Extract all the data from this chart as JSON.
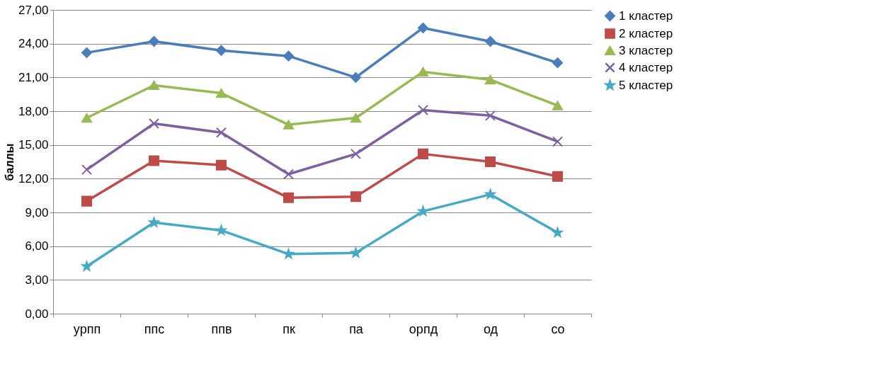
{
  "chart_data": {
    "type": "line",
    "ylabel": "баллы",
    "categories": [
      "урпп",
      "ппс",
      "ппв",
      "пк",
      "па",
      "орпд",
      "од",
      "со"
    ],
    "series": [
      {
        "name": "1 кластер",
        "color": "#4a7ebb",
        "marker": "diamond",
        "values": [
          23.2,
          24.2,
          23.4,
          22.9,
          21.0,
          25.4,
          24.2,
          22.3
        ]
      },
      {
        "name": "2 кластер",
        "color": "#be4b48",
        "marker": "square",
        "values": [
          10.0,
          13.6,
          13.2,
          10.3,
          10.4,
          14.2,
          13.5,
          12.2
        ]
      },
      {
        "name": "3 кластер",
        "color": "#98b954",
        "marker": "triangle",
        "values": [
          17.4,
          20.3,
          19.6,
          16.8,
          17.4,
          21.5,
          20.8,
          18.5
        ]
      },
      {
        "name": "4 кластер",
        "color": "#7d60a0",
        "marker": "cross",
        "values": [
          12.8,
          16.9,
          16.1,
          12.4,
          14.2,
          18.1,
          17.6,
          15.3
        ]
      },
      {
        "name": "5 кластер",
        "color": "#46aac5",
        "marker": "star",
        "values": [
          4.2,
          8.1,
          7.4,
          5.3,
          5.4,
          9.1,
          10.6,
          7.2
        ]
      }
    ],
    "ylim": [
      0,
      27
    ],
    "yticks": [
      {
        "value": 0,
        "label": "0,00"
      },
      {
        "value": 3,
        "label": "3,00"
      },
      {
        "value": 6,
        "label": "6,00"
      },
      {
        "value": 9,
        "label": "9,00"
      },
      {
        "value": 12,
        "label": "12,00"
      },
      {
        "value": 15,
        "label": "15,00"
      },
      {
        "value": 18,
        "label": "18,00"
      },
      {
        "value": 21,
        "label": "21,00"
      },
      {
        "value": 24,
        "label": "24,00"
      },
      {
        "value": 27,
        "label": "27,00"
      }
    ],
    "grid": "y",
    "legend": "right",
    "line_style": "solid"
  }
}
